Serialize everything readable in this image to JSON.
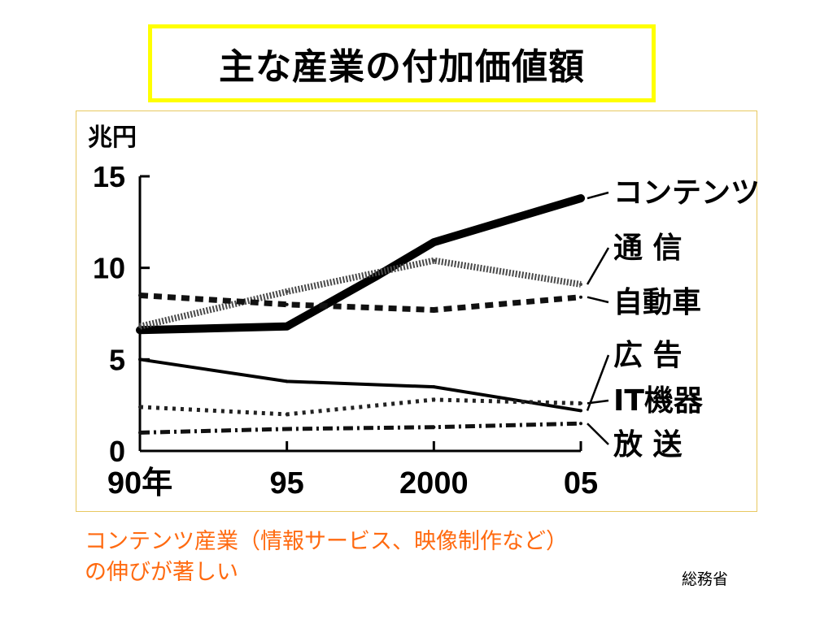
{
  "title": "主な産業の付加価値額",
  "caption": {
    "line1": "コンテンツ産業（情報サービス、映像制作など）",
    "line2": "の伸びが著しい"
  },
  "source": "総務省",
  "chart_data": {
    "type": "line",
    "ylabel": "兆円",
    "xlabel": "",
    "ylim": [
      0,
      15
    ],
    "y_ticks": [
      "0",
      "5",
      "10",
      "15"
    ],
    "categories": [
      "90年",
      "95",
      "2000",
      "05"
    ],
    "x": [
      1990,
      1995,
      2000,
      2005
    ],
    "grid": false,
    "legend": "right, labels at line ends",
    "series": [
      {
        "name": "コンテンツ",
        "style": "thick-solid",
        "x": [
          1990,
          1995,
          1998,
          2000,
          2005
        ],
        "values": [
          6.6,
          6.8,
          9.5,
          11.4,
          13.8
        ]
      },
      {
        "name": "通 信",
        "style": "hatched",
        "x": [
          1990,
          1995,
          2000,
          2005
        ],
        "values": [
          6.8,
          8.7,
          10.4,
          9.1
        ]
      },
      {
        "name": "自動車",
        "style": "dashed",
        "x": [
          1990,
          1995,
          2000,
          2005
        ],
        "values": [
          8.5,
          8.0,
          7.7,
          8.4
        ]
      },
      {
        "name": "広 告",
        "style": "solid",
        "x": [
          1990,
          1995,
          2000,
          2005
        ],
        "values": [
          5.0,
          3.8,
          3.5,
          2.2
        ]
      },
      {
        "name": "IT機器",
        "style": "dotted",
        "x": [
          1990,
          1995,
          2000,
          2005
        ],
        "values": [
          2.4,
          2.0,
          2.8,
          2.6
        ]
      },
      {
        "name": "放 送",
        "style": "dash-dot",
        "x": [
          1990,
          1995,
          2000,
          2005
        ],
        "values": [
          1.0,
          1.2,
          1.3,
          1.5
        ]
      }
    ]
  }
}
